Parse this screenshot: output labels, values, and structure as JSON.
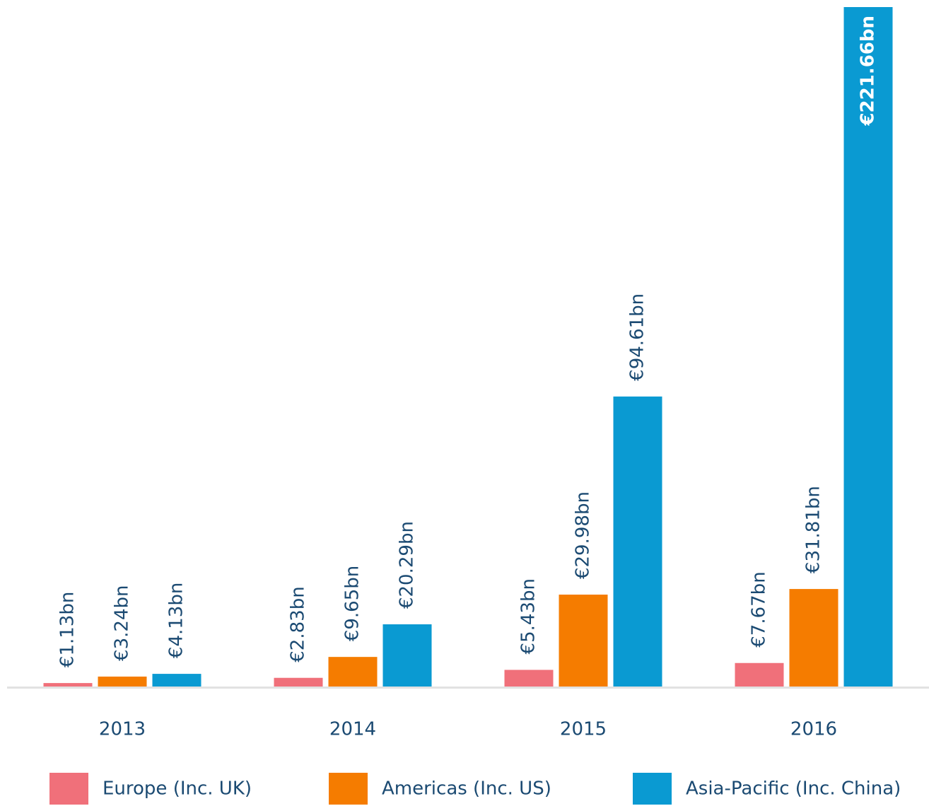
{
  "chart_data": {
    "type": "bar",
    "categories": [
      "2013",
      "2014",
      "2015",
      "2016"
    ],
    "series": [
      {
        "name": "Europe (Inc. UK)",
        "color": "#f0707a",
        "values": [
          1.13,
          2.83,
          5.43,
          7.67
        ],
        "value_labels": [
          "€1.13bn",
          "€2.83bn",
          "€5.43bn",
          "€7.67bn"
        ]
      },
      {
        "name": "Americas (Inc. US)",
        "color": "#f57c00",
        "values": [
          3.24,
          9.65,
          29.98,
          31.81
        ],
        "value_labels": [
          "€3.24bn",
          "€9.65bn",
          "€29.98bn",
          "€31.81bn"
        ]
      },
      {
        "name": "Asia-Pacific (Inc. China)",
        "color": "#0a9ad2",
        "values": [
          4.13,
          20.29,
          94.61,
          221.66
        ],
        "value_labels": [
          "€4.13bn",
          "€20.29bn",
          "€94.61bn",
          "€221.66bn"
        ]
      }
    ]
  }
}
